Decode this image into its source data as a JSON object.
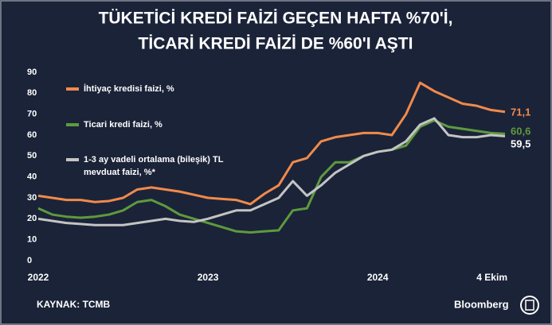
{
  "chart_data": {
    "type": "line",
    "title": [
      "TÜKETİCİ KREDİ FAİZİ GEÇEN HAFTA %70'İ,",
      "TİCARİ KREDİ FAİZİ DE %60'I AŞTI"
    ],
    "categories": [
      "2022",
      null,
      null,
      null,
      null,
      null,
      null,
      null,
      null,
      null,
      null,
      null,
      "2023",
      null,
      null,
      null,
      null,
      null,
      null,
      null,
      null,
      null,
      null,
      null,
      "2024",
      null,
      null,
      null,
      null,
      null,
      null,
      null,
      null,
      "4 Ekim"
    ],
    "series": [
      {
        "name": "İhtiyaç kredisi faizi, %",
        "color": "#f08a4b",
        "values": [
          31,
          30,
          29,
          29,
          28,
          28.5,
          30,
          34,
          35,
          34,
          33,
          31.5,
          30,
          29.5,
          29,
          27,
          32,
          36,
          47,
          49,
          57,
          59,
          60,
          61,
          61,
          60,
          70,
          85,
          81,
          78,
          75,
          74,
          72,
          71.1
        ],
        "value_labels": [
          null,
          null,
          null,
          null,
          null,
          null,
          null,
          null,
          null,
          null,
          null,
          null,
          null,
          null,
          null,
          null,
          null,
          null,
          null,
          null,
          null,
          null,
          null,
          null,
          null,
          null,
          null,
          null,
          null,
          null,
          null,
          null,
          null,
          "71,1"
        ]
      },
      {
        "name": "Ticari kredi faizi, %",
        "color": "#5e9a3e",
        "values": [
          25,
          22,
          21,
          20.5,
          21,
          22,
          24,
          28,
          29,
          26,
          22,
          20,
          18,
          16,
          14,
          13.5,
          14,
          14.5,
          24,
          25,
          40,
          47,
          47,
          50,
          52,
          53,
          55,
          64,
          67,
          64,
          63,
          62,
          61,
          60.6
        ],
        "value_labels": [
          null,
          null,
          null,
          null,
          null,
          null,
          null,
          null,
          null,
          null,
          null,
          null,
          null,
          null,
          null,
          null,
          null,
          null,
          null,
          null,
          null,
          null,
          null,
          null,
          null,
          null,
          null,
          null,
          null,
          null,
          null,
          null,
          null,
          "60,6"
        ]
      },
      {
        "name": "1-3 ay vadeli ortalama (bileşik) TL mevduat faizi, %*",
        "color": "#c4c4c4",
        "values": [
          20,
          19,
          18,
          17.5,
          17,
          17,
          17,
          18,
          19,
          20,
          19,
          18.5,
          20,
          22,
          24,
          24,
          27,
          30,
          38,
          31,
          36,
          42,
          46,
          50,
          52,
          53,
          57,
          65,
          68,
          60,
          59,
          59,
          60,
          59.5
        ],
        "value_labels": [
          null,
          null,
          null,
          null,
          null,
          null,
          null,
          null,
          null,
          null,
          null,
          null,
          null,
          null,
          null,
          null,
          null,
          null,
          null,
          null,
          null,
          null,
          null,
          null,
          null,
          null,
          null,
          null,
          null,
          null,
          null,
          null,
          null,
          "59,5"
        ]
      }
    ],
    "ylim": [
      0,
      90
    ],
    "yticks": [
      0,
      10,
      20,
      30,
      40,
      50,
      60,
      70,
      80,
      90
    ],
    "grid": false,
    "source": "KAYNAK: TCMB",
    "brand": "Bloomberg"
  }
}
